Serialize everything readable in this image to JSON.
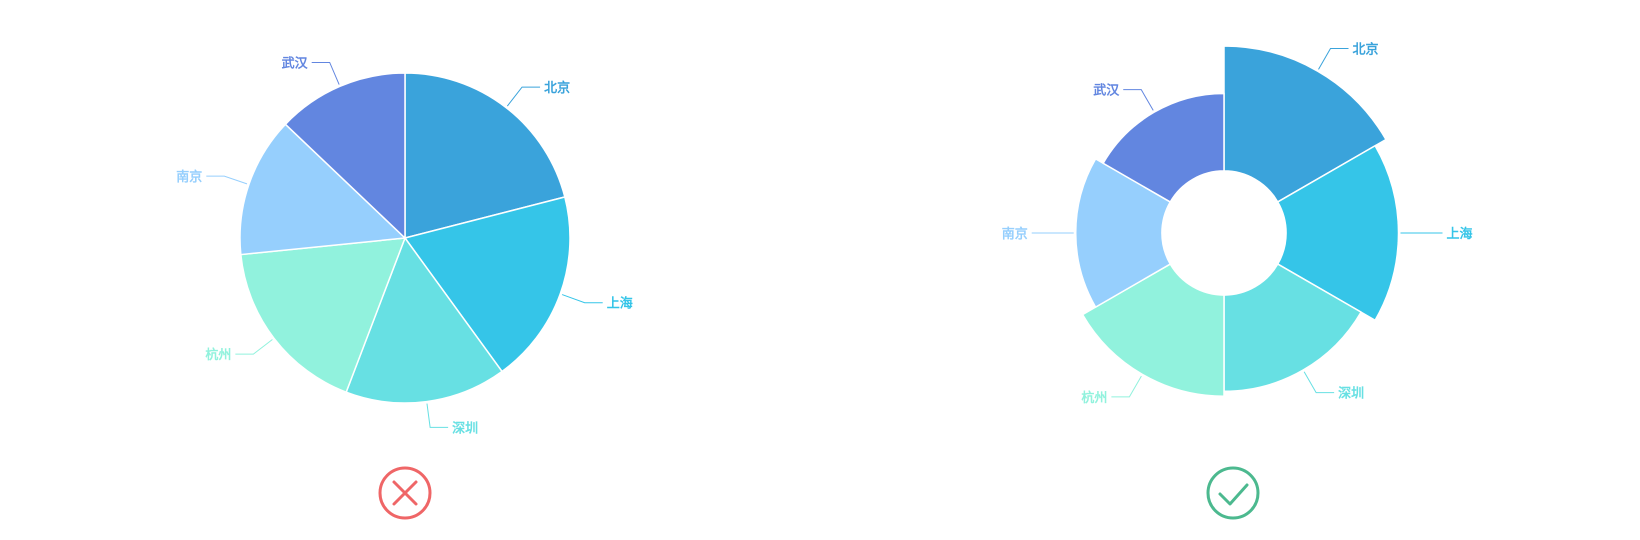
{
  "colors": {
    "北京": "#3aa3db",
    "上海": "#35c5e8",
    "深圳": "#67e0e3",
    "杭州": "#91f2dd",
    "南京": "#96cffd",
    "武汉": "#6286e0",
    "wrong": "#ef6667",
    "right": "#4cb98f"
  },
  "chart_data": [
    {
      "type": "pie",
      "verdict": "wrong",
      "verdict_icon": "cross-circle-icon",
      "slices": [
        {
          "label": "北京",
          "value": 21.0
        },
        {
          "label": "上海",
          "value": 19.0
        },
        {
          "label": "深圳",
          "value": 15.8
        },
        {
          "label": "杭州",
          "value": 17.6
        },
        {
          "label": "南京",
          "value": 13.7
        },
        {
          "label": "武汉",
          "value": 12.9
        }
      ]
    },
    {
      "type": "pie",
      "variant": "nightingale-rose",
      "verdict": "right",
      "verdict_icon": "check-circle-icon",
      "inner_radius_ratio": 0.4,
      "slices": [
        {
          "label": "北京",
          "value": 100
        },
        {
          "label": "上海",
          "value": 90
        },
        {
          "label": "深圳",
          "value": 77
        },
        {
          "label": "杭州",
          "value": 81
        },
        {
          "label": "南京",
          "value": 69
        },
        {
          "label": "武汉",
          "value": 62
        }
      ]
    }
  ]
}
